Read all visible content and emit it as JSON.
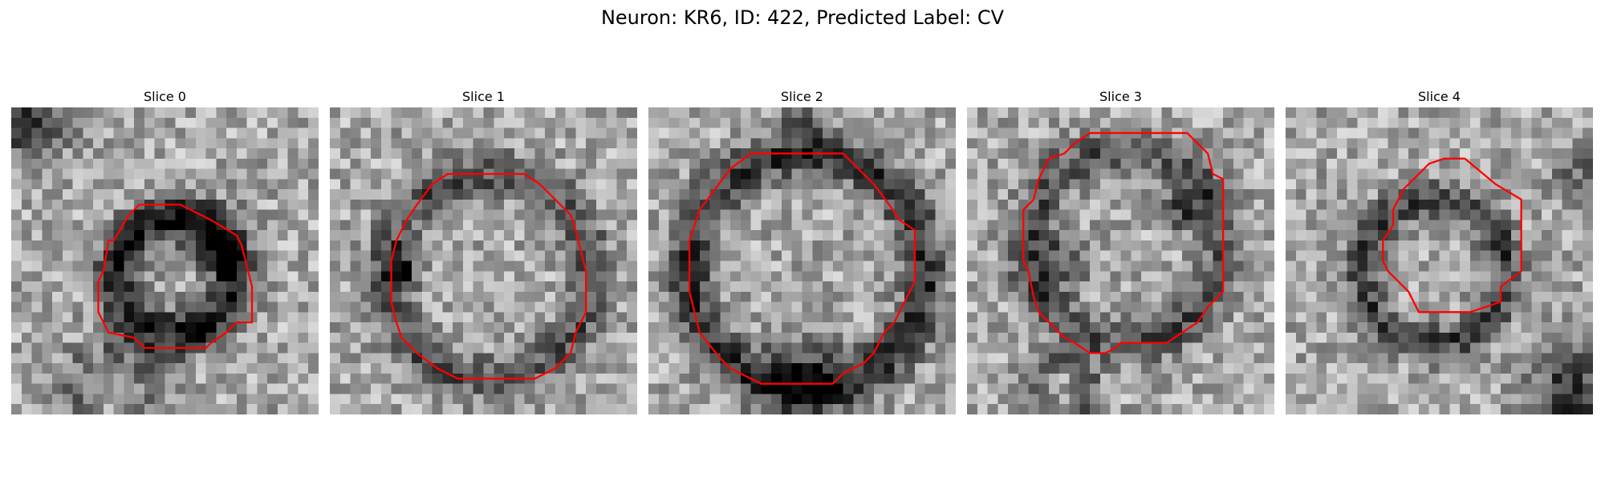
{
  "figure": {
    "title": "Neuron: KR6, ID: 422, Predicted Label: CV",
    "contour_color": "#ff0000",
    "image_colormap": "gray",
    "grid_size": 30
  },
  "panels": [
    {
      "title": "Slice 0",
      "contour": [
        [
          12.5,
          9.5
        ],
        [
          16.5,
          9.5
        ],
        [
          19.5,
          11
        ],
        [
          22,
          12.5
        ],
        [
          22.5,
          13.5
        ],
        [
          23,
          15.5
        ],
        [
          23.5,
          17.5
        ],
        [
          23.5,
          21
        ],
        [
          22,
          21
        ],
        [
          21,
          22
        ],
        [
          19.5,
          23
        ],
        [
          19,
          23.5
        ],
        [
          13,
          23.5
        ],
        [
          12,
          22.5
        ],
        [
          9.5,
          22
        ],
        [
          9,
          21
        ],
        [
          8.5,
          20
        ],
        [
          8.5,
          17
        ],
        [
          9,
          16
        ],
        [
          9.5,
          13
        ],
        [
          10,
          13
        ],
        [
          11.5,
          10.5
        ]
      ],
      "rings": [
        {
          "cx": 16,
          "cy": 16.5,
          "r": 5.6,
          "w": 3.2,
          "d": 0.55
        },
        {
          "cx": 10,
          "cy": 28,
          "r": 4,
          "w": 3,
          "d": 0.2
        }
      ],
      "blobs": [
        {
          "cx": 20,
          "cy": 13,
          "r": 2,
          "d": 0.35
        },
        {
          "cx": 1,
          "cy": 1,
          "r": 3,
          "d": 0.45
        }
      ]
    },
    {
      "title": "Slice 1",
      "contour": [
        [
          11.5,
          6.5
        ],
        [
          19,
          6.5
        ],
        [
          20.5,
          7.5
        ],
        [
          22,
          9
        ],
        [
          23.5,
          10.5
        ],
        [
          24,
          12
        ],
        [
          24.5,
          14
        ],
        [
          25,
          16
        ],
        [
          25,
          20
        ],
        [
          24.5,
          21
        ],
        [
          24,
          22
        ],
        [
          23.5,
          24
        ],
        [
          22,
          25.5
        ],
        [
          21,
          26
        ],
        [
          20,
          26.5
        ],
        [
          12.5,
          26.5
        ],
        [
          10.5,
          25.5
        ],
        [
          8.5,
          24
        ],
        [
          7,
          22.5
        ],
        [
          6.5,
          21
        ],
        [
          6,
          19
        ],
        [
          6,
          15
        ],
        [
          6.5,
          13
        ],
        [
          7.5,
          11
        ],
        [
          8.5,
          9.5
        ],
        [
          10,
          7.5
        ]
      ],
      "rings": [
        {
          "cx": 15.5,
          "cy": 16.5,
          "r": 10,
          "w": 3,
          "d": 0.35
        }
      ],
      "blobs": [
        {
          "cx": 7,
          "cy": 16,
          "r": 1.2,
          "d": 0.5
        }
      ]
    },
    {
      "title": "Slice 2",
      "contour": [
        [
          10,
          4.5
        ],
        [
          19,
          4.5
        ],
        [
          22,
          7.5
        ],
        [
          23.5,
          9.5
        ],
        [
          24.5,
          11
        ],
        [
          26,
          12
        ],
        [
          26,
          17
        ],
        [
          25,
          19
        ],
        [
          24,
          21
        ],
        [
          23,
          22
        ],
        [
          22,
          24
        ],
        [
          21,
          25
        ],
        [
          19,
          26
        ],
        [
          18,
          27
        ],
        [
          11,
          27
        ],
        [
          8,
          25.5
        ],
        [
          7,
          24.5
        ],
        [
          5,
          22
        ],
        [
          4.5,
          20
        ],
        [
          4,
          18
        ],
        [
          4,
          13
        ],
        [
          5,
          10
        ],
        [
          6.5,
          8
        ],
        [
          8,
          6
        ]
      ],
      "rings": [
        {
          "cx": 15.5,
          "cy": 16,
          "r": 11.5,
          "w": 3.2,
          "d": 0.45
        }
      ],
      "blobs": [
        {
          "cx": 15,
          "cy": 26.5,
          "r": 3,
          "d": 0.35
        },
        {
          "cx": 15,
          "cy": 1,
          "r": 1.5,
          "d": 0.35
        }
      ]
    },
    {
      "title": "Slice 3",
      "contour": [
        [
          12,
          2.5
        ],
        [
          21.5,
          2.5
        ],
        [
          22.5,
          3.5
        ],
        [
          23.5,
          4.5
        ],
        [
          24,
          6.5
        ],
        [
          25,
          7
        ],
        [
          25,
          18
        ],
        [
          23.5,
          19.5
        ],
        [
          22.5,
          21
        ],
        [
          19.5,
          23
        ],
        [
          15,
          23
        ],
        [
          14.5,
          23.5
        ],
        [
          13.5,
          24
        ],
        [
          12,
          24
        ],
        [
          10.5,
          23
        ],
        [
          9.5,
          22.5
        ],
        [
          8,
          21
        ],
        [
          7,
          20
        ],
        [
          6.5,
          18.5
        ],
        [
          6,
          16
        ],
        [
          5.5,
          15
        ],
        [
          5.5,
          10
        ],
        [
          6.5,
          9
        ],
        [
          7,
          7
        ],
        [
          8,
          5
        ],
        [
          9.5,
          4.5
        ],
        [
          10.5,
          3.5
        ]
      ],
      "rings": [
        {
          "cx": 15.5,
          "cy": 13.5,
          "r": 9.5,
          "w": 3,
          "d": 0.35
        },
        {
          "cx": 9,
          "cy": 27.5,
          "r": 3,
          "w": 2,
          "d": 0.25
        }
      ],
      "blobs": [
        {
          "cx": 9,
          "cy": 15,
          "r": 2,
          "d": 0.3
        },
        {
          "cx": 21,
          "cy": 10,
          "r": 1.5,
          "d": 0.35
        }
      ]
    },
    {
      "title": "Slice 4",
      "contour": [
        [
          15.5,
          5
        ],
        [
          17.5,
          5
        ],
        [
          20.5,
          7.5
        ],
        [
          23,
          9
        ],
        [
          23,
          16
        ],
        [
          21,
          17.5
        ],
        [
          21,
          19
        ],
        [
          19.5,
          19.5
        ],
        [
          18,
          20
        ],
        [
          13,
          20
        ],
        [
          12,
          18
        ],
        [
          10,
          16
        ],
        [
          9.5,
          15
        ],
        [
          9.5,
          13
        ],
        [
          10.5,
          11.5
        ],
        [
          10.5,
          10
        ],
        [
          11.5,
          8
        ],
        [
          14,
          5.5
        ]
      ],
      "rings": [
        {
          "cx": 14.5,
          "cy": 16,
          "r": 7,
          "w": 2.6,
          "d": 0.4
        }
      ],
      "blobs": [
        {
          "cx": 28,
          "cy": 28,
          "r": 3,
          "d": 0.45
        },
        {
          "cx": 29,
          "cy": 6,
          "r": 2,
          "d": 0.25
        }
      ]
    }
  ]
}
